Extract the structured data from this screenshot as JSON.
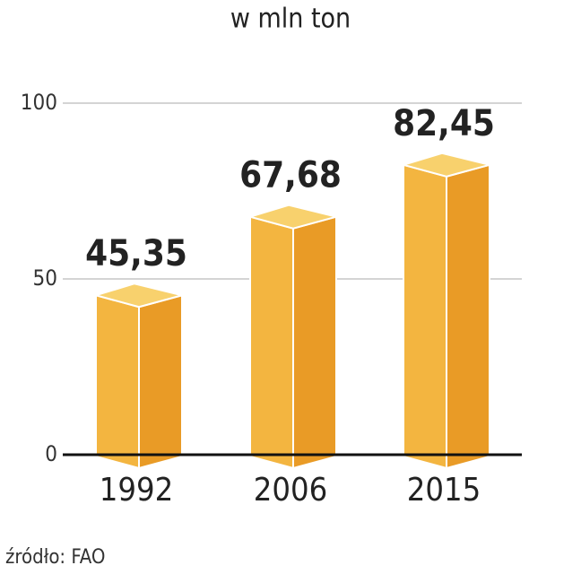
{
  "chart_data": {
    "type": "bar3d",
    "subtitle": "w mln ton",
    "categories": [
      "1992",
      "2006",
      "2015"
    ],
    "values": [
      45.35,
      67.68,
      82.45
    ],
    "value_labels": [
      "45,35",
      "67,68",
      "82,45"
    ],
    "colors": {
      "left": "#f3b540",
      "right": "#e99b26",
      "top": "#f8d16d"
    },
    "ylim": [
      0,
      100
    ],
    "yticks": [
      0,
      50,
      100
    ],
    "grid": true,
    "source": "źródło: FAO"
  }
}
